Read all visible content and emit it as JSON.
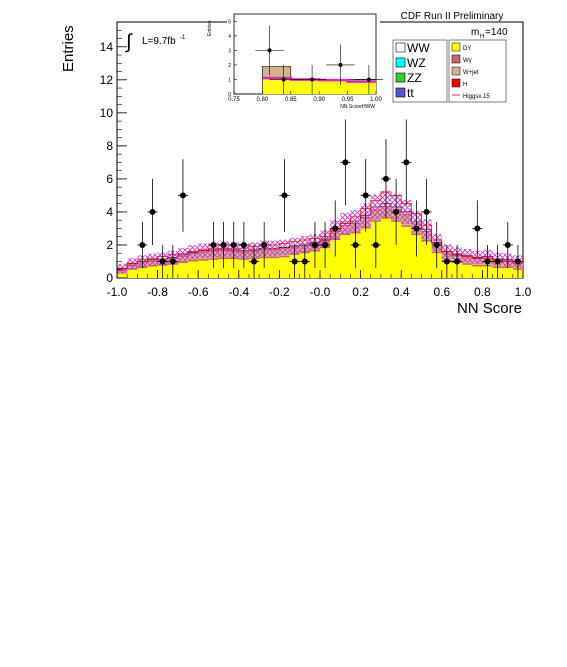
{
  "chart_data": {
    "type": "bar",
    "title": "CDF Run II Preliminary",
    "xlabel": "NN Score",
    "ylabel": "Entries",
    "annotations": {
      "lumi": "L=9.7fb",
      "lumi_exp": "-1",
      "mass": "m",
      "mass_sub": "H",
      "mass_val": "=140"
    },
    "xlim": [
      -1.0,
      1.0
    ],
    "ylim": [
      0,
      15.5
    ],
    "xticks": [
      "-1.0",
      "-0.8",
      "-0.6",
      "-0.4",
      "-0.2",
      "-0.0",
      "0.2",
      "0.4",
      "0.6",
      "0.8",
      "1.0"
    ],
    "yticks": [
      "0",
      "2",
      "4",
      "6",
      "8",
      "10",
      "12",
      "14"
    ],
    "bin_width": 0.05,
    "bin_low_edges": [
      -1.0,
      -0.95,
      -0.9,
      -0.85,
      -0.8,
      -0.75,
      -0.7,
      -0.65,
      -0.6,
      -0.55,
      -0.5,
      -0.45,
      -0.4,
      -0.35,
      -0.3,
      -0.25,
      -0.2,
      -0.15,
      -0.1,
      -0.05,
      0.0,
      0.05,
      0.1,
      0.15,
      0.2,
      0.25,
      0.3,
      0.35,
      0.4,
      0.45,
      0.5,
      0.55,
      0.6,
      0.65,
      0.7,
      0.75,
      0.8,
      0.85,
      0.9,
      0.95
    ],
    "stack_order": [
      "DY",
      "Wgamma",
      "Wjet",
      "H",
      "WW"
    ],
    "stacks": {
      "DY": [
        0.3,
        0.5,
        0.6,
        0.7,
        0.75,
        0.8,
        0.9,
        1.0,
        1.05,
        1.1,
        1.15,
        1.15,
        1.1,
        1.15,
        1.2,
        1.2,
        1.25,
        1.4,
        1.5,
        1.6,
        1.8,
        2.3,
        2.6,
        2.7,
        3.0,
        3.4,
        3.6,
        3.4,
        3.1,
        2.6,
        2.2,
        1.5,
        1.0,
        0.9,
        0.8,
        0.7,
        0.7,
        0.6,
        0.6,
        0.5
      ],
      "Wgamma": [
        0.05,
        0.1,
        0.1,
        0.1,
        0.1,
        0.1,
        0.1,
        0.1,
        0.1,
        0.1,
        0.1,
        0.1,
        0.1,
        0.1,
        0.1,
        0.1,
        0.1,
        0.1,
        0.1,
        0.1,
        0.1,
        0.1,
        0.1,
        0.1,
        0.1,
        0.1,
        0.1,
        0.1,
        0.1,
        0.1,
        0.1,
        0.1,
        0.1,
        0.1,
        0.1,
        0.1,
        0.1,
        0.1,
        0.1,
        0.1
      ],
      "Wjet": [
        0.1,
        0.15,
        0.2,
        0.2,
        0.2,
        0.25,
        0.3,
        0.35,
        0.4,
        0.4,
        0.4,
        0.35,
        0.35,
        0.35,
        0.4,
        0.4,
        0.4,
        0.35,
        0.35,
        0.35,
        0.35,
        0.4,
        0.45,
        0.5,
        0.55,
        0.6,
        0.6,
        0.6,
        0.6,
        0.55,
        0.5,
        0.45,
        0.4,
        0.35,
        0.35,
        0.35,
        0.4,
        0.35,
        0.3,
        0.3
      ],
      "H": [
        0.05,
        0.05,
        0.05,
        0.05,
        0.05,
        0.05,
        0.05,
        0.05,
        0.05,
        0.05,
        0.05,
        0.05,
        0.05,
        0.05,
        0.05,
        0.05,
        0.05,
        0.05,
        0.05,
        0.05,
        0.05,
        0.05,
        0.05,
        0.05,
        0.05,
        0.05,
        0.05,
        0.05,
        0.05,
        0.05,
        0.05,
        0.05,
        0.05,
        0.05,
        0.05,
        0.05,
        0.05,
        0.05,
        0.05,
        0.05
      ],
      "WW": [
        0.05,
        0.05,
        0.05,
        0.05,
        0.05,
        0.05,
        0.05,
        0.05,
        0.05,
        0.05,
        0.05,
        0.05,
        0.05,
        0.05,
        0.05,
        0.05,
        0.05,
        0.05,
        0.05,
        0.05,
        0.05,
        0.05,
        0.1,
        0.1,
        0.1,
        0.15,
        0.15,
        0.15,
        0.15,
        0.1,
        0.1,
        0.05,
        0.05,
        0.05,
        0.05,
        0.05,
        0.05,
        0.05,
        0.05,
        0.05
      ]
    },
    "higgs_signal": [
      0.6,
      0.9,
      1.1,
      1.2,
      1.3,
      1.4,
      1.5,
      1.6,
      1.7,
      1.8,
      1.8,
      1.8,
      1.8,
      1.9,
      2.0,
      2.0,
      2.1,
      2.2,
      2.3,
      2.4,
      2.5,
      3.0,
      3.4,
      3.7,
      4.2,
      4.7,
      5.2,
      5.0,
      4.5,
      3.9,
      3.2,
      2.3,
      1.6,
      1.4,
      1.3,
      1.2,
      1.2,
      1.1,
      1.0,
      0.9
    ],
    "data_points": [
      {
        "x": -0.875,
        "y": 2,
        "err": 1.4
      },
      {
        "x": -0.825,
        "y": 4,
        "err": 2.0
      },
      {
        "x": -0.775,
        "y": 1,
        "err": 1.0
      },
      {
        "x": -0.725,
        "y": 1,
        "err": 1.0
      },
      {
        "x": -0.675,
        "y": 5,
        "err": 2.2
      },
      {
        "x": -0.525,
        "y": 2,
        "err": 1.4
      },
      {
        "x": -0.475,
        "y": 2,
        "err": 1.4
      },
      {
        "x": -0.425,
        "y": 2,
        "err": 1.4
      },
      {
        "x": -0.375,
        "y": 2,
        "err": 1.4
      },
      {
        "x": -0.325,
        "y": 1,
        "err": 1.0
      },
      {
        "x": -0.275,
        "y": 2,
        "err": 1.4
      },
      {
        "x": -0.175,
        "y": 5,
        "err": 2.2
      },
      {
        "x": -0.125,
        "y": 1,
        "err": 1.0
      },
      {
        "x": -0.075,
        "y": 1,
        "err": 1.0
      },
      {
        "x": -0.025,
        "y": 2,
        "err": 1.4
      },
      {
        "x": 0.025,
        "y": 2,
        "err": 1.4
      },
      {
        "x": 0.075,
        "y": 3,
        "err": 1.7
      },
      {
        "x": 0.125,
        "y": 7,
        "err": 2.6
      },
      {
        "x": 0.175,
        "y": 2,
        "err": 1.4
      },
      {
        "x": 0.225,
        "y": 5,
        "err": 2.2
      },
      {
        "x": 0.275,
        "y": 2,
        "err": 1.4
      },
      {
        "x": 0.325,
        "y": 6,
        "err": 2.4
      },
      {
        "x": 0.375,
        "y": 4,
        "err": 2.0
      },
      {
        "x": 0.425,
        "y": 7,
        "err": 2.6
      },
      {
        "x": 0.475,
        "y": 3,
        "err": 1.7
      },
      {
        "x": 0.525,
        "y": 4,
        "err": 2.0
      },
      {
        "x": 0.575,
        "y": 2,
        "err": 1.4
      },
      {
        "x": 0.625,
        "y": 1,
        "err": 1.0
      },
      {
        "x": 0.675,
        "y": 1,
        "err": 1.0
      },
      {
        "x": 0.775,
        "y": 3,
        "err": 1.7
      },
      {
        "x": 0.825,
        "y": 1,
        "err": 1.0
      },
      {
        "x": 0.875,
        "y": 1,
        "err": 1.0
      },
      {
        "x": 0.925,
        "y": 2,
        "err": 1.4
      },
      {
        "x": 0.975,
        "y": 1,
        "err": 1.0
      }
    ],
    "legend_placement": "top-right",
    "legend": [
      {
        "label": "WW",
        "color": "#ffffff"
      },
      {
        "label": "WZ",
        "color": "#00ffff"
      },
      {
        "label": "ZZ",
        "color": "#33cc33"
      },
      {
        "label": "tt",
        "color": "#5555cc"
      },
      {
        "label": "DY",
        "color": "#ffff00"
      },
      {
        "label": "Wγ",
        "color": "#cc6666"
      },
      {
        "label": "W+jet",
        "color": "#d2b48c"
      },
      {
        "label": "H",
        "color": "#ff0000"
      },
      {
        "label": "Higgsx 15",
        "color": "#ff0000"
      }
    ],
    "colors": {
      "DY": "#ffff00",
      "Wgamma": "#cc6666",
      "Wjet": "#d2b48c",
      "H": "#ff0000",
      "WW": "#ffffff",
      "uncertainty": "#cc33cc"
    }
  },
  "inset": {
    "type": "bar",
    "xlabel": "NN ScoreHWW",
    "ylabel": "Entries",
    "xlim": [
      0.75,
      1.0
    ],
    "ylim": [
      0,
      5.5
    ],
    "xticks": [
      "0.75",
      "0.80",
      "0.85",
      "0.90",
      "0.95",
      "1.00"
    ],
    "yticks": [
      "0",
      "1",
      "2",
      "3",
      "4",
      "5"
    ],
    "bin_low_edges": [
      0.75,
      0.8,
      0.85,
      0.9,
      0.95
    ],
    "DY": [
      0.0,
      1.0,
      0.9,
      0.9,
      0.9
    ],
    "Wjet": [
      0.0,
      0.9,
      0.1,
      0.1,
      0.1
    ],
    "total": [
      0.0,
      1.9,
      1.0,
      1.0,
      1.0
    ],
    "signal": [
      0.0,
      1.1,
      1.0,
      0.95,
      0.85
    ],
    "data_points": [
      {
        "x": 0.8125,
        "y": 3,
        "err": 1.7
      },
      {
        "x": 0.8375,
        "y": 1,
        "err": 1.0
      },
      {
        "x": 0.8875,
        "y": 1,
        "err": 1.0
      },
      {
        "x": 0.9375,
        "y": 2,
        "err": 1.4
      },
      {
        "x": 0.9875,
        "y": 1,
        "err": 1.0
      }
    ]
  }
}
